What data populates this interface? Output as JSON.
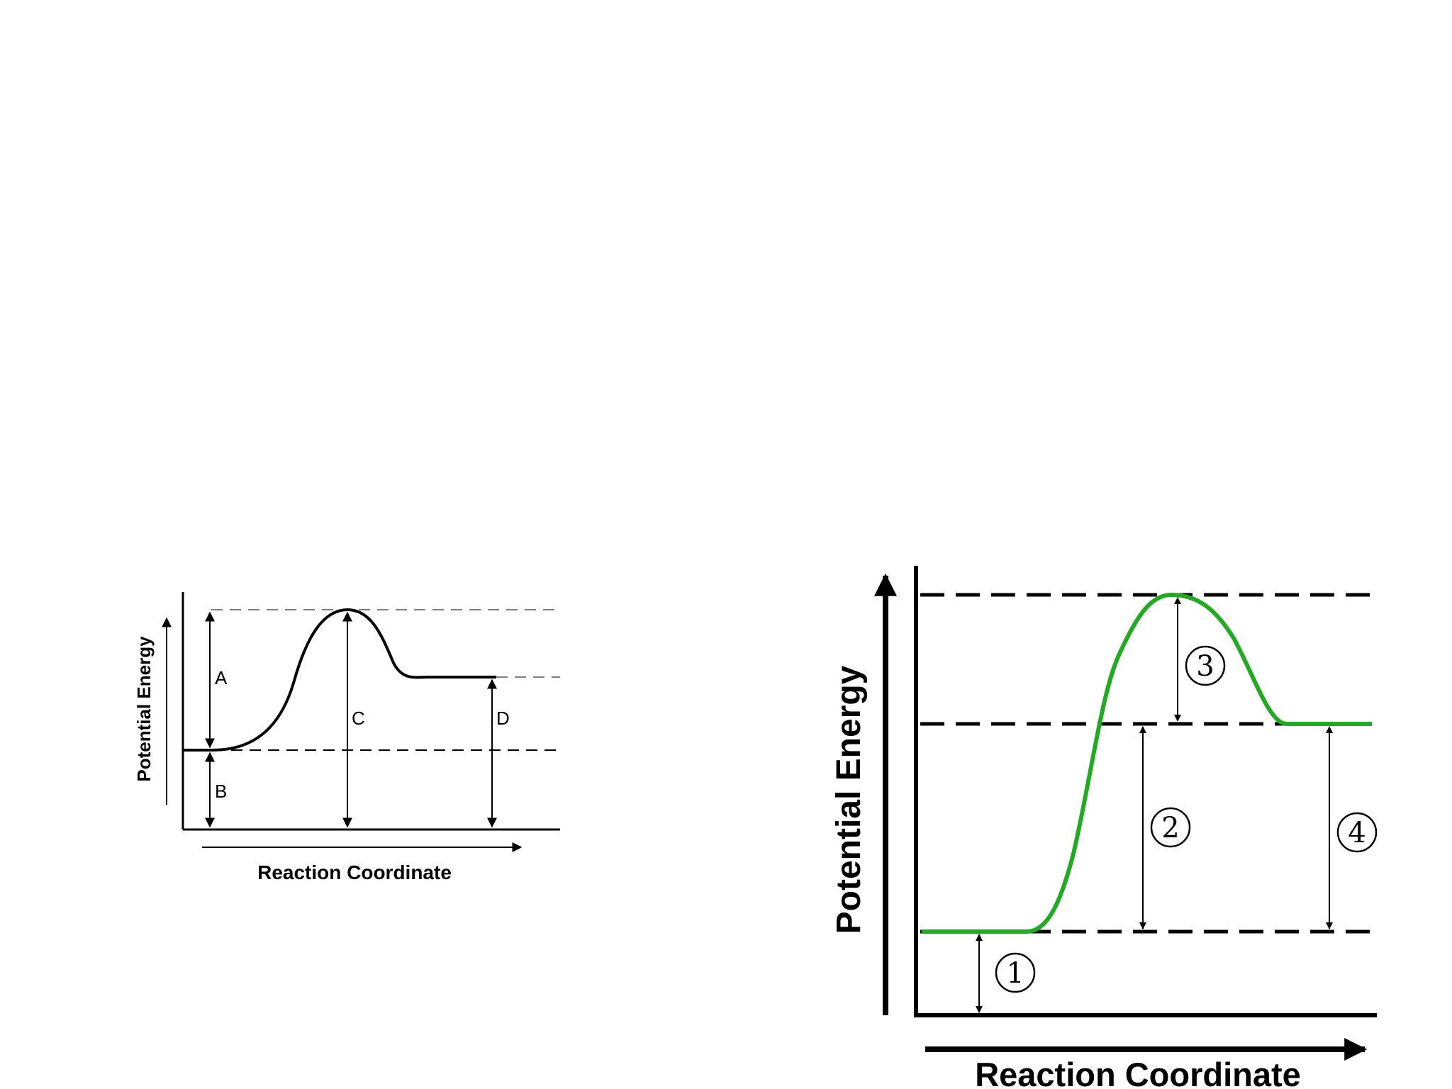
{
  "left_diagram": {
    "y_axis_label": "Potential Energy",
    "x_axis_label": "Reaction Coordinate",
    "arrow_labels": [
      "A",
      "B",
      "C",
      "D"
    ]
  },
  "right_diagram": {
    "y_axis_label": "Potential Energy",
    "x_axis_label": "Reaction Coordinate",
    "arrow_labels": [
      "1",
      "2",
      "3",
      "4"
    ],
    "curve_color": "#22aa22"
  }
}
